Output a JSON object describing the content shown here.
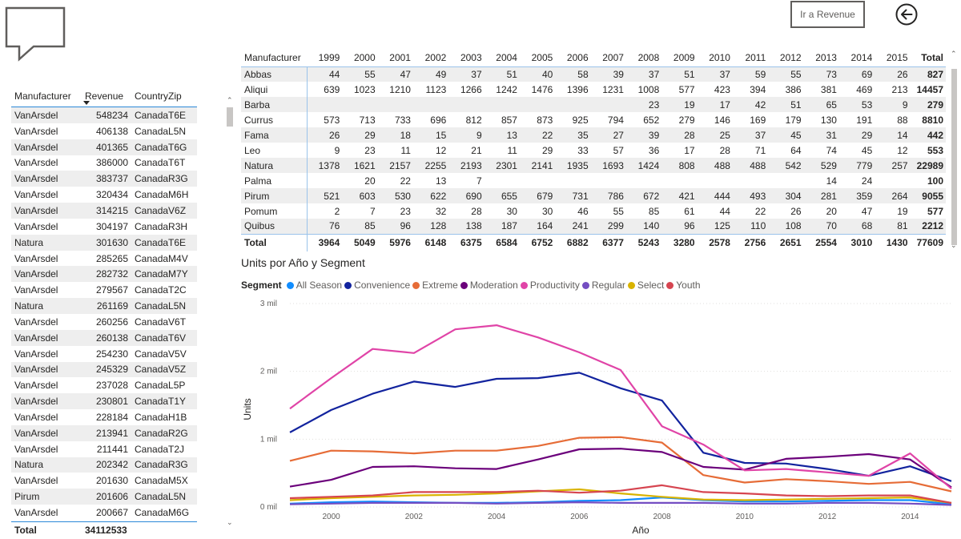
{
  "header": {
    "revenue_button": "Ir a Revenue",
    "back_icon": "back-arrow-circle-icon",
    "bubble_icon": "speech-bubble-icon"
  },
  "left_table": {
    "headers": [
      "Manufacturer",
      "Revenue",
      "CountryZip"
    ],
    "rows": [
      [
        "VanArsdel",
        "548234",
        "CanadaT6E"
      ],
      [
        "VanArsdel",
        "406138",
        "CanadaL5N"
      ],
      [
        "VanArsdel",
        "401365",
        "CanadaT6G"
      ],
      [
        "VanArsdel",
        "386000",
        "CanadaT6T"
      ],
      [
        "VanArsdel",
        "383737",
        "CanadaR3G"
      ],
      [
        "VanArsdel",
        "320434",
        "CanadaM6H"
      ],
      [
        "VanArsdel",
        "314215",
        "CanadaV6Z"
      ],
      [
        "VanArsdel",
        "304197",
        "CanadaR3H"
      ],
      [
        "Natura",
        "301630",
        "CanadaT6E"
      ],
      [
        "VanArsdel",
        "285265",
        "CanadaM4V"
      ],
      [
        "VanArsdel",
        "282732",
        "CanadaM7Y"
      ],
      [
        "VanArsdel",
        "279567",
        "CanadaT2C"
      ],
      [
        "Natura",
        "261169",
        "CanadaL5N"
      ],
      [
        "VanArsdel",
        "260256",
        "CanadaV6T"
      ],
      [
        "VanArsdel",
        "260138",
        "CanadaT6V"
      ],
      [
        "VanArsdel",
        "254230",
        "CanadaV5V"
      ],
      [
        "VanArsdel",
        "245329",
        "CanadaV5Z"
      ],
      [
        "VanArsdel",
        "237028",
        "CanadaL5P"
      ],
      [
        "VanArsdel",
        "230801",
        "CanadaT1Y"
      ],
      [
        "VanArsdel",
        "228184",
        "CanadaH1B"
      ],
      [
        "VanArsdel",
        "213941",
        "CanadaR2G"
      ],
      [
        "VanArsdel",
        "211441",
        "CanadaT2J"
      ],
      [
        "Natura",
        "202342",
        "CanadaR3G"
      ],
      [
        "VanArsdel",
        "201630",
        "CanadaM5X"
      ],
      [
        "Pirum",
        "201606",
        "CanadaL5N"
      ],
      [
        "VanArsdel",
        "200667",
        "CanadaM6G"
      ]
    ],
    "total_label": "Total",
    "total_value": "34112533"
  },
  "matrix": {
    "corner": "Manufacturer",
    "years": [
      "1999",
      "2000",
      "2001",
      "2002",
      "2003",
      "2004",
      "2005",
      "2006",
      "2007",
      "2008",
      "2009",
      "2010",
      "2011",
      "2012",
      "2013",
      "2014",
      "2015"
    ],
    "total_header": "Total",
    "rows": [
      {
        "name": "Abbas",
        "values": [
          "44",
          "55",
          "47",
          "49",
          "37",
          "51",
          "40",
          "58",
          "39",
          "37",
          "51",
          "37",
          "59",
          "55",
          "73",
          "69",
          "26"
        ],
        "total": "827"
      },
      {
        "name": "Aliqui",
        "values": [
          "639",
          "1023",
          "1210",
          "1123",
          "1266",
          "1242",
          "1476",
          "1396",
          "1231",
          "1008",
          "577",
          "423",
          "394",
          "386",
          "381",
          "469",
          "213"
        ],
        "total": "14457"
      },
      {
        "name": "Barba",
        "values": [
          "",
          "",
          "",
          "",
          "",
          "",
          "",
          "",
          "",
          "23",
          "19",
          "17",
          "42",
          "51",
          "65",
          "53",
          "9"
        ],
        "total": "279"
      },
      {
        "name": "Currus",
        "values": [
          "573",
          "713",
          "733",
          "696",
          "812",
          "857",
          "873",
          "925",
          "794",
          "652",
          "279",
          "146",
          "169",
          "179",
          "130",
          "191",
          "88"
        ],
        "total": "8810"
      },
      {
        "name": "Fama",
        "values": [
          "26",
          "29",
          "18",
          "15",
          "9",
          "13",
          "22",
          "35",
          "27",
          "39",
          "28",
          "25",
          "37",
          "45",
          "31",
          "29",
          "14"
        ],
        "total": "442"
      },
      {
        "name": "Leo",
        "values": [
          "9",
          "23",
          "11",
          "12",
          "21",
          "11",
          "29",
          "33",
          "57",
          "36",
          "17",
          "28",
          "71",
          "64",
          "74",
          "45",
          "12"
        ],
        "total": "553"
      },
      {
        "name": "Natura",
        "values": [
          "1378",
          "1621",
          "2157",
          "2255",
          "2193",
          "2301",
          "2141",
          "1935",
          "1693",
          "1424",
          "808",
          "488",
          "488",
          "542",
          "529",
          "779",
          "257"
        ],
        "total": "22989"
      },
      {
        "name": "Palma",
        "values": [
          "",
          "20",
          "22",
          "13",
          "7",
          "",
          "",
          "",
          "",
          "",
          "",
          "",
          "",
          "",
          "14",
          "24",
          ""
        ],
        "total": "100"
      },
      {
        "name": "Pirum",
        "values": [
          "521",
          "603",
          "530",
          "622",
          "690",
          "655",
          "679",
          "731",
          "786",
          "672",
          "421",
          "444",
          "493",
          "304",
          "281",
          "359",
          "264"
        ],
        "total": "9055"
      },
      {
        "name": "Pomum",
        "values": [
          "2",
          "7",
          "23",
          "32",
          "28",
          "30",
          "30",
          "46",
          "55",
          "85",
          "61",
          "44",
          "22",
          "26",
          "20",
          "47",
          "19"
        ],
        "total": "577"
      },
      {
        "name": "Quibus",
        "values": [
          "76",
          "85",
          "96",
          "128",
          "138",
          "187",
          "164",
          "241",
          "299",
          "140",
          "96",
          "125",
          "110",
          "108",
          "70",
          "68",
          "81"
        ],
        "total": "2212"
      }
    ],
    "footer": {
      "name": "Total",
      "values": [
        "3964",
        "5049",
        "5976",
        "6148",
        "6375",
        "6584",
        "6752",
        "6882",
        "6377",
        "5243",
        "3280",
        "2578",
        "2756",
        "2651",
        "2554",
        "3010",
        "1430"
      ],
      "total": "77609"
    }
  },
  "chart_data": {
    "type": "line",
    "title": "Units por Año y Segment",
    "legend_title": "Segment",
    "xlabel": "Año",
    "ylabel": "Units",
    "xlim": [
      1999,
      2015
    ],
    "ylim": [
      0,
      3000
    ],
    "x_ticks": [
      2000,
      2002,
      2004,
      2006,
      2008,
      2010,
      2012,
      2014
    ],
    "y_ticks": [
      {
        "value": 0,
        "label": "0 mil"
      },
      {
        "value": 1000,
        "label": "1 mil"
      },
      {
        "value": 2000,
        "label": "2 mil"
      },
      {
        "value": 3000,
        "label": "3 mil"
      }
    ],
    "grid": true,
    "legend_position": "top-left",
    "x": [
      1999,
      2000,
      2001,
      2002,
      2003,
      2004,
      2005,
      2006,
      2007,
      2008,
      2009,
      2010,
      2011,
      2012,
      2013,
      2014,
      2015
    ],
    "series": [
      {
        "name": "All Season",
        "color": "#118DFF",
        "values": [
          50,
          70,
          80,
          70,
          60,
          60,
          70,
          90,
          100,
          140,
          100,
          80,
          80,
          90,
          100,
          100,
          40
        ]
      },
      {
        "name": "Convenience",
        "color": "#12239E",
        "values": [
          1100,
          1430,
          1670,
          1850,
          1770,
          1890,
          1900,
          1980,
          1750,
          1570,
          800,
          650,
          640,
          560,
          460,
          600,
          380
        ]
      },
      {
        "name": "Extreme",
        "color": "#E66C37",
        "values": [
          680,
          830,
          820,
          790,
          830,
          830,
          900,
          1020,
          1030,
          950,
          470,
          360,
          410,
          380,
          340,
          370,
          230
        ]
      },
      {
        "name": "Moderation",
        "color": "#6B007B",
        "values": [
          300,
          400,
          590,
          600,
          570,
          560,
          700,
          850,
          860,
          810,
          590,
          550,
          710,
          740,
          780,
          700,
          290
        ]
      },
      {
        "name": "Productivity",
        "color": "#E044A7",
        "values": [
          1450,
          1900,
          2330,
          2270,
          2620,
          2680,
          2500,
          2280,
          2020,
          1190,
          920,
          540,
          560,
          510,
          460,
          790,
          270
        ]
      },
      {
        "name": "Regular",
        "color": "#744EC2",
        "values": [
          40,
          50,
          60,
          60,
          60,
          50,
          60,
          70,
          60,
          60,
          60,
          50,
          50,
          60,
          60,
          50,
          30
        ]
      },
      {
        "name": "Select",
        "color": "#D9B300",
        "values": [
          100,
          130,
          150,
          170,
          180,
          200,
          230,
          260,
          200,
          150,
          110,
          100,
          110,
          120,
          130,
          140,
          60
        ]
      },
      {
        "name": "Youth",
        "color": "#D64550",
        "values": [
          130,
          150,
          170,
          220,
          220,
          220,
          240,
          210,
          240,
          320,
          220,
          200,
          170,
          160,
          170,
          170,
          60
        ]
      }
    ]
  }
}
